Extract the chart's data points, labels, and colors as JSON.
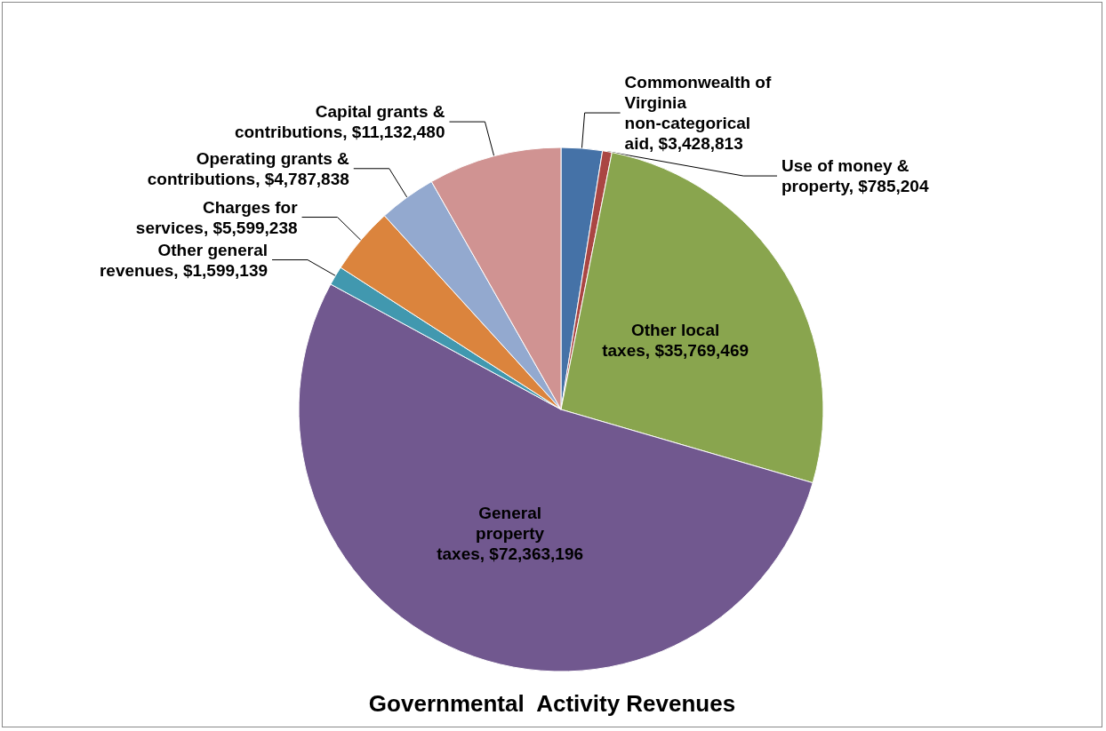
{
  "chart_data": {
    "type": "pie",
    "title": "Governmental  Activity Revenues",
    "categories": [
      "Commonwealth of Virginia non-categorical aid",
      "Use of money & property",
      "Other local taxes",
      "General property taxes",
      "Other general revenues",
      "Charges for services",
      "Operating grants & contributions",
      "Capital grants & contributions"
    ],
    "values": [
      3428813,
      785204,
      35769469,
      72363196,
      1599139,
      5599238,
      4787838,
      11132480
    ],
    "value_labels": [
      "$3,428,813",
      "$785,204",
      "$35,769,469",
      "$72,363,196",
      "$1,599,139",
      "$5,599,238",
      "$4,787,838",
      "$11,132,480"
    ],
    "colors": [
      "#4572a7",
      "#aa4643",
      "#89a54e",
      "#71588f",
      "#4198af",
      "#db843d",
      "#93a9cf",
      "#d09392"
    ],
    "legend": false
  }
}
